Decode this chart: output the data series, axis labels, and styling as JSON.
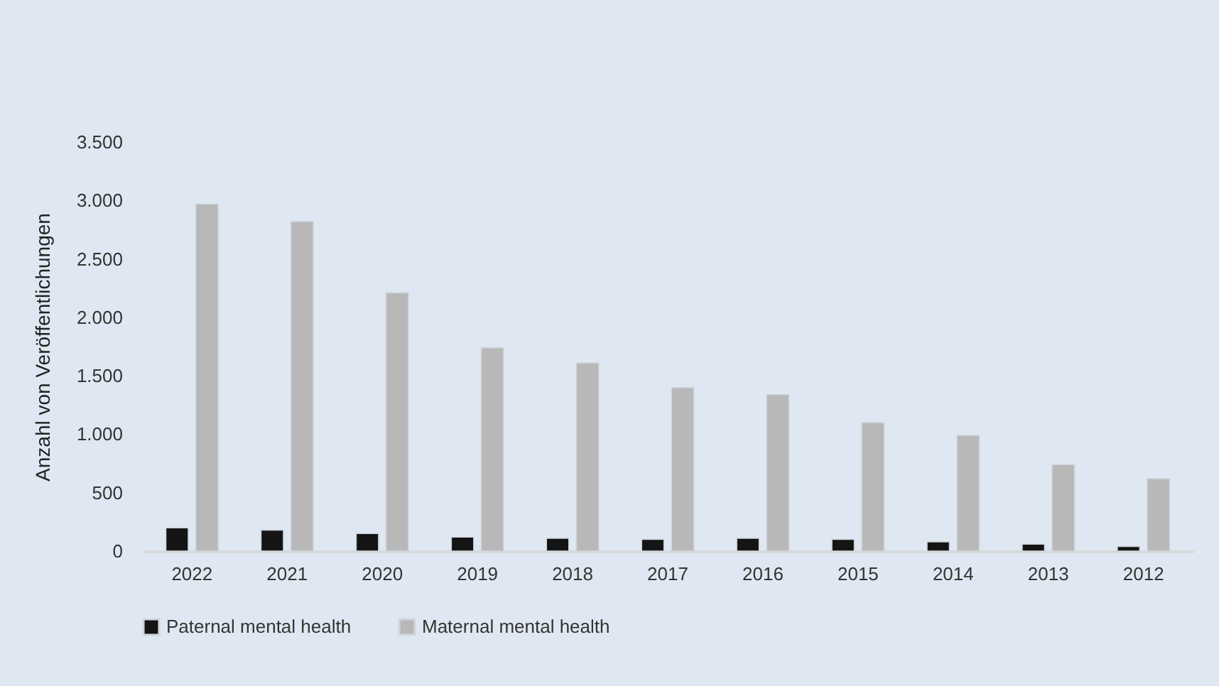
{
  "chart_data": {
    "type": "bar",
    "ylabel": "Anzahl von Veröffentlichungen",
    "categories": [
      "2022",
      "2021",
      "2020",
      "2019",
      "2018",
      "2017",
      "2016",
      "2015",
      "2014",
      "2013",
      "2012"
    ],
    "series": [
      {
        "name": "Paternal mental health",
        "color": "#141414",
        "values": [
          200,
          180,
          150,
          120,
          110,
          100,
          110,
          100,
          80,
          60,
          40
        ]
      },
      {
        "name": "Maternal mental health",
        "color": "#b8b8b8",
        "values": [
          2970,
          2820,
          2210,
          1740,
          1610,
          1400,
          1340,
          1100,
          990,
          740,
          620
        ]
      }
    ],
    "ylim": [
      0,
      3500
    ],
    "yticks": [
      0,
      500,
      {
        "value": 1000,
        "label": "1.000"
      },
      {
        "value": 1500,
        "label": "1.500"
      },
      {
        "value": 2000,
        "label": "2.000"
      },
      {
        "value": 2500,
        "label": "2.500"
      },
      {
        "value": 3000,
        "label": "3.000"
      },
      {
        "value": 3500,
        "label": "3.500"
      }
    ],
    "grid": false,
    "legend": "bottom"
  }
}
